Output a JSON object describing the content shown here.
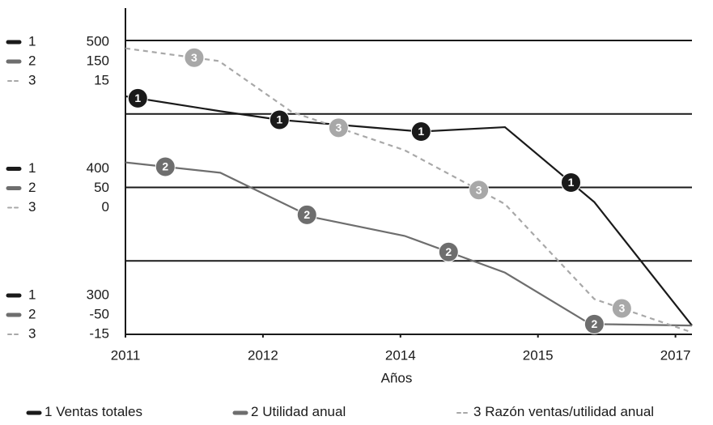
{
  "chart_data": {
    "type": "line",
    "x_label": "Años",
    "xlim": [
      0,
      4.12
    ],
    "xticks": [
      {
        "value": 0,
        "label": "2011"
      },
      {
        "value": 1,
        "label": "2012"
      },
      {
        "value": 2,
        "label": "2014"
      },
      {
        "value": 3,
        "label": "2015"
      },
      {
        "value": 4,
        "label": "2017"
      }
    ],
    "grid": true,
    "series": [
      {
        "name": "Ventas totales",
        "label": "1",
        "color": "#1a1a1a",
        "dashed": false,
        "x": [
          0,
          0.68,
          1.12,
          2.15,
          2.76,
          3.41,
          4.12
        ],
        "values": [
          462,
          452,
          446,
          438,
          441,
          390,
          306
        ],
        "markers": [
          0.09,
          1.12,
          2.15,
          3.24
        ],
        "ylim": [
          300,
          500
        ],
        "yticks": [
          500,
          400,
          300
        ]
      },
      {
        "name": "Utilidad anual",
        "label": "2",
        "color": "#6e6e6e",
        "dashed": false,
        "x": [
          0,
          0.69,
          1.35,
          2.03,
          2.76,
          3.38,
          4.12
        ],
        "values": [
          67,
          60,
          30,
          17,
          -8,
          -43,
          -44
        ],
        "markers": [
          0.29,
          1.32,
          2.35,
          3.41
        ],
        "ylim": [
          -50,
          150
        ],
        "yticks": [
          150,
          50,
          -50
        ]
      },
      {
        "name": "Razón ventas/utilidad anual",
        "label": "3",
        "color": "#a8a8a8",
        "dashed": true,
        "x": [
          0,
          0.68,
          1.21,
          2.03,
          2.76,
          3.41,
          4.12
        ],
        "values": [
          14.2,
          12.9,
          7.7,
          3.8,
          -1.7,
          -11.4,
          -14.8
        ],
        "markers": [
          0.5,
          1.55,
          2.57,
          3.61
        ],
        "ylim": [
          -15,
          15
        ],
        "yticks": [
          15,
          0,
          -15
        ]
      }
    ]
  }
}
